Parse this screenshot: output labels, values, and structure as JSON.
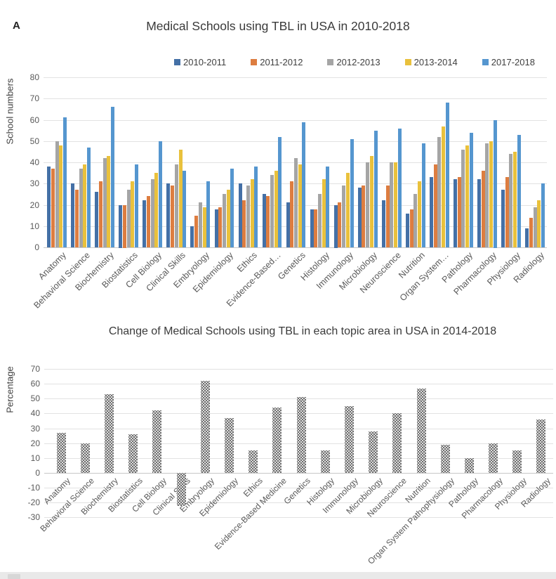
{
  "panel_label": "A",
  "chart_data": [
    {
      "type": "bar",
      "title": "Medical Schools using TBL in USA  in 2010-2018",
      "ylabel": "School numbers",
      "ylim": [
        0,
        80
      ],
      "y_ticks": [
        80,
        70,
        60,
        50,
        40,
        30,
        20,
        10,
        0
      ],
      "grid": true,
      "legend_position": "top",
      "categories": [
        "Anatomy",
        "Behavioral Science",
        "Biochemistry",
        "Biostatistics",
        "Cell Biology",
        "Clinical Skills",
        "Embryology",
        "Epidemiology",
        "Ethics",
        "Evidence-Based…",
        "Genetics",
        "Histology",
        "Immunology",
        "Microbiology",
        "Neuroscience",
        "Nutrition",
        "Organ System…",
        "Pathology",
        "Pharmacology",
        "Physiology",
        "Radiology"
      ],
      "series": [
        {
          "name": "2010-2011",
          "color": "#4470a6",
          "values": [
            38,
            30,
            26,
            20,
            22,
            30,
            10,
            18,
            30,
            25,
            21,
            18,
            20,
            28,
            22,
            16,
            33,
            32,
            32,
            27,
            9
          ]
        },
        {
          "name": "2011-2012",
          "color": "#dd7d40",
          "values": [
            37,
            27,
            31,
            20,
            24,
            29,
            15,
            19,
            22,
            24,
            31,
            18,
            21,
            29,
            29,
            18,
            39,
            33,
            36,
            33,
            14
          ]
        },
        {
          "name": "2012-2013",
          "color": "#a5a5a5",
          "values": [
            50,
            37,
            42,
            27,
            32,
            39,
            21,
            25,
            29,
            34,
            42,
            25,
            29,
            40,
            40,
            25,
            52,
            46,
            49,
            44,
            19
          ]
        },
        {
          "name": "2013-2014",
          "color": "#e9c13c",
          "values": [
            48,
            39,
            43,
            31,
            35,
            46,
            19,
            27,
            32,
            36,
            39,
            32,
            35,
            43,
            40,
            31,
            57,
            48,
            50,
            45,
            22
          ]
        },
        {
          "name": "2017-2018",
          "color": "#5596cf",
          "values": [
            61,
            47,
            66,
            39,
            50,
            36,
            31,
            37,
            38,
            52,
            59,
            38,
            51,
            55,
            56,
            49,
            68,
            54,
            60,
            53,
            30
          ]
        }
      ]
    },
    {
      "type": "bar",
      "title": "Change of Medical Schools using TBL in each topic area in USA in 2014-2018",
      "ylabel": "Percentage",
      "ylim": [
        -30,
        70
      ],
      "y_ticks": [
        70,
        60,
        50,
        40,
        30,
        20,
        10,
        0,
        -10,
        -20,
        -30
      ],
      "grid": true,
      "legend_position": "none",
      "categories": [
        "Anatomy",
        "Behavioral Science",
        "Biochemistry",
        "Biostatistics",
        "Cell Biology",
        "Clinical Skills",
        "Embryology",
        "Epidemiology",
        "Ethics",
        "Evidence-Based Medicine",
        "Genetics",
        "Histology",
        "Immunology",
        "Microbiology",
        "Neuroscience",
        "Nutrition",
        "Organ System Pathophysiology",
        "Pathology",
        "Pharmacology",
        "Physiology",
        "Radiology"
      ],
      "series": [
        {
          "name": "2014-2018 change",
          "pattern": "checker-gray",
          "values": [
            27,
            20,
            53,
            26,
            42,
            -22,
            62,
            37,
            15,
            44,
            51,
            15,
            45,
            28,
            40,
            57,
            19,
            10,
            20,
            15,
            36
          ]
        }
      ]
    }
  ]
}
